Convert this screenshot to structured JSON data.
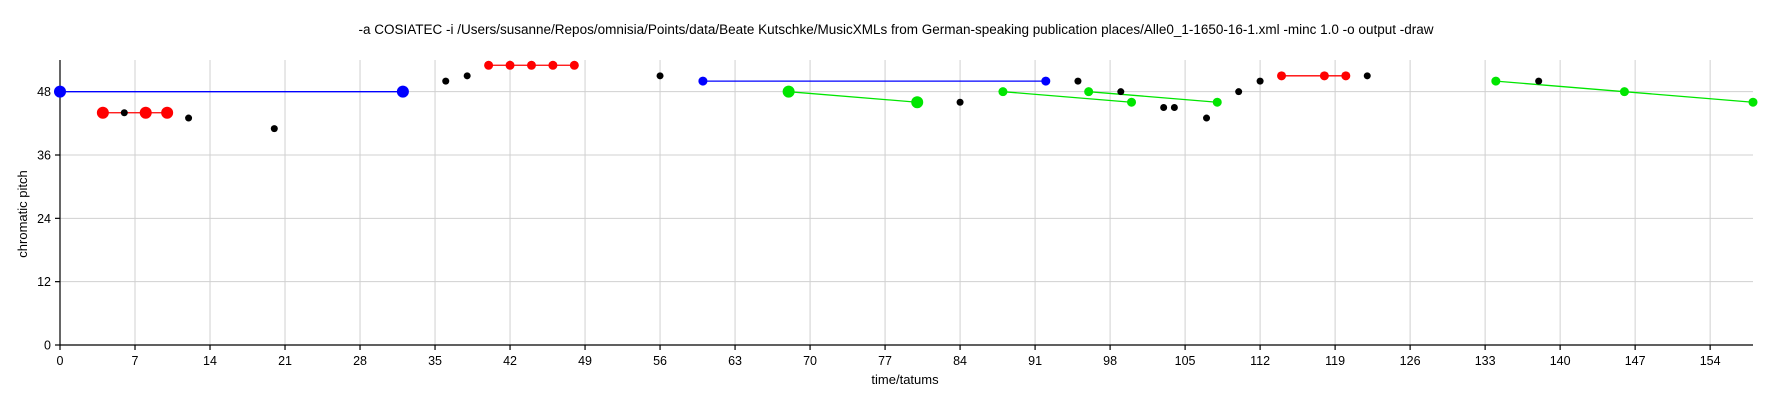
{
  "chart_data": {
    "type": "scatter",
    "title": "-a COSIATEC -i /Users/susanne/Repos/omnisia/Points/data/Beate Kutschke/MusicXMLs from German-speaking publication places/Alle0_1-1650-16-1.xml -minc 1.0 -o output -draw",
    "xlabel": "time/tatums",
    "ylabel": "chromatic pitch",
    "xlim": [
      0,
      158
    ],
    "ylim": [
      0,
      54
    ],
    "x_ticks": [
      0,
      7,
      14,
      21,
      28,
      35,
      42,
      49,
      56,
      63,
      70,
      77,
      84,
      91,
      98,
      105,
      112,
      119,
      126,
      133,
      140,
      147,
      154
    ],
    "y_ticks": [
      0,
      12,
      24,
      36,
      48
    ],
    "grid": true,
    "colors": {
      "blue": "#0000ff",
      "red": "#ff0000",
      "green": "#00e600",
      "black": "#000000"
    },
    "patterns": [
      {
        "color": "blue",
        "size": "large",
        "points": [
          [
            0,
            48
          ],
          [
            32,
            48
          ]
        ]
      },
      {
        "color": "blue",
        "size": "medium",
        "points": [
          [
            60,
            50
          ],
          [
            92,
            50
          ]
        ]
      },
      {
        "color": "red",
        "size": "large",
        "points": [
          [
            4,
            44
          ],
          [
            8,
            44
          ],
          [
            10,
            44
          ]
        ]
      },
      {
        "color": "red",
        "size": "medium",
        "points": [
          [
            40,
            53
          ],
          [
            42,
            53
          ],
          [
            44,
            53
          ],
          [
            46,
            53
          ],
          [
            48,
            53
          ]
        ]
      },
      {
        "color": "red",
        "size": "medium",
        "points": [
          [
            114,
            51
          ],
          [
            118,
            51
          ],
          [
            120,
            51
          ]
        ]
      },
      {
        "color": "green",
        "size": "large",
        "points": [
          [
            68,
            48
          ],
          [
            80,
            46
          ]
        ]
      },
      {
        "color": "green",
        "size": "medium",
        "points": [
          [
            88,
            48
          ],
          [
            100,
            46
          ]
        ]
      },
      {
        "color": "green",
        "size": "medium",
        "points": [
          [
            96,
            48
          ],
          [
            108,
            46
          ]
        ]
      },
      {
        "color": "green",
        "size": "medium",
        "points": [
          [
            134,
            50
          ],
          [
            146,
            48
          ],
          [
            158,
            46
          ]
        ]
      }
    ],
    "black_points": [
      [
        6,
        44
      ],
      [
        12,
        43
      ],
      [
        20,
        41
      ],
      [
        36,
        50
      ],
      [
        38,
        51
      ],
      [
        56,
        51
      ],
      [
        84,
        46
      ],
      [
        95,
        50
      ],
      [
        99,
        48
      ],
      [
        103,
        45
      ],
      [
        104,
        45
      ],
      [
        107,
        43
      ],
      [
        110,
        48
      ],
      [
        112,
        50
      ],
      [
        122,
        51
      ],
      [
        138,
        50
      ]
    ]
  }
}
